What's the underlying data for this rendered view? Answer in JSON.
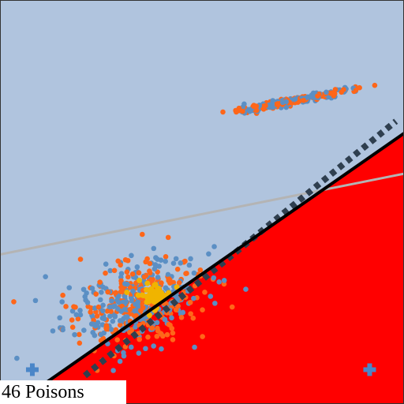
{
  "caption": "46 Poisons",
  "colors": {
    "background": "#b0c4de",
    "region": "#ff0000",
    "clean_a": "#5b8fc4",
    "clean_b": "#ff6619",
    "poison": "#f0b400",
    "boundary": "#000000",
    "boundary_dashed": "#2f3f4f",
    "gray_line": "#b4b4b4",
    "marker": "#4a86c8",
    "caption_bg": "#ffffff"
  },
  "chart_data": {
    "type": "scatter",
    "xlim": [
      0,
      100
    ],
    "ylim": [
      0,
      100
    ],
    "grid": false,
    "legend": "none",
    "title": "",
    "xlabel": "",
    "ylabel": "",
    "clusters": [
      {
        "name": "",
        "center": [
          33,
          25
        ],
        "spread": [
          8.5,
          5.5
        ],
        "rho": 0.3,
        "count": 520
      },
      {
        "name": "",
        "center": [
          72,
          75
        ],
        "spread": [
          7.5,
          1.5
        ],
        "rho": 0.96,
        "count": 260
      }
    ],
    "poisons": {
      "count": 46,
      "center": [
        38,
        27
      ],
      "spread": [
        2.2,
        1.6
      ]
    },
    "decision_boundaries": [
      {
        "style": "solid",
        "points": [
          [
            11,
            5
          ],
          [
            100,
            67
          ]
        ]
      },
      {
        "style": "dashed",
        "points": [
          [
            21,
            7
          ],
          [
            98,
            70
          ]
        ]
      },
      {
        "style": "gray",
        "points": [
          [
            0,
            37
          ],
          [
            100,
            57
          ]
        ]
      }
    ],
    "markers": [
      {
        "symbol": "plus",
        "point": [
          8,
          8.5
        ]
      },
      {
        "symbol": "plus",
        "point": [
          91.5,
          8.5
        ]
      }
    ]
  }
}
